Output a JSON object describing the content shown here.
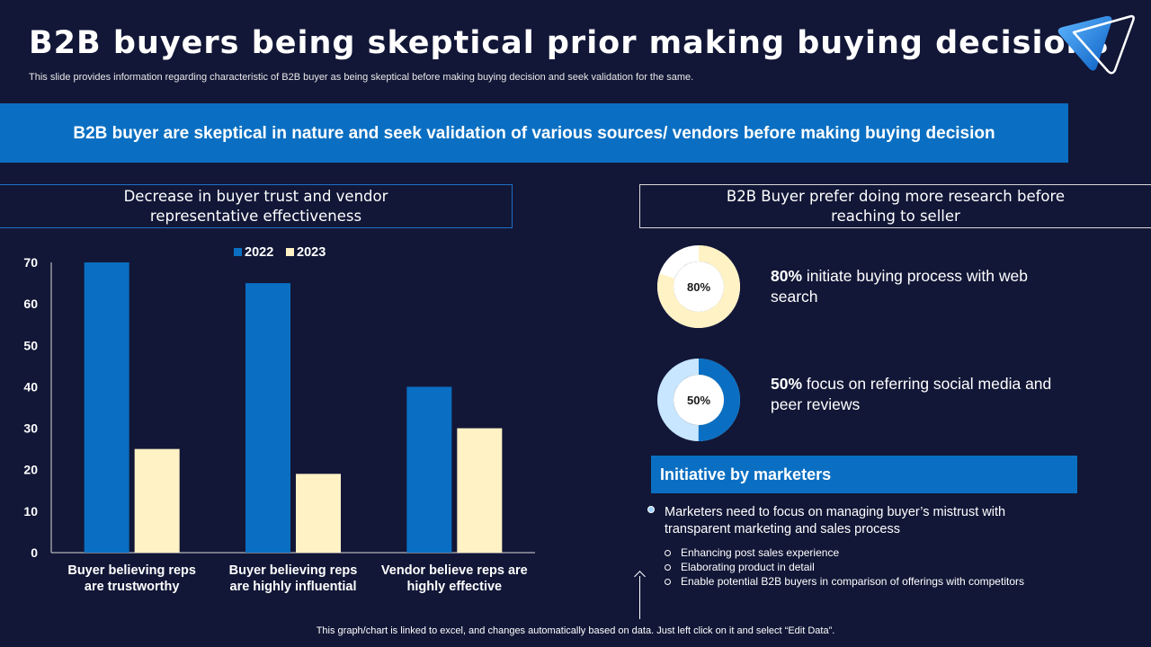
{
  "header": {
    "title": "B2B buyers being skeptical prior making buying decisions",
    "subtitle": "This slide provides information regarding characteristic of B2B buyer as being skeptical before making buying decision and seek validation for the same."
  },
  "banner": {
    "text": "B2B buyer are skeptical in nature and seek validation of various sources/ vendors before making buying decision"
  },
  "left_panel": {
    "heading_line1": "Decrease in buyer trust and vendor",
    "heading_line2": "representative effectiveness"
  },
  "right_panel": {
    "heading_line1": "B2B Buyer prefer doing more research before",
    "heading_line2": "reaching to seller",
    "stats": [
      {
        "percent_label": "80%",
        "value": 80,
        "bold": "80%",
        "text": " initiate buying process with web search"
      },
      {
        "percent_label": "50%",
        "value": 50,
        "bold": "50%",
        "text": " focus on referring social media and peer reviews"
      }
    ]
  },
  "initiative": {
    "title": "Initiative by marketers",
    "main_bullet": "Marketers need to focus on managing buyer’s mistrust with transparent marketing and sales process",
    "sub_bullets": [
      "Enhancing post sales experience",
      "Elaborating product in detail",
      "Enable potential B2B buyers in comparison of offerings with competitors"
    ]
  },
  "footnote": "This graph/chart is linked to excel, and changes automatically based on data. Just left click on it and select “Edit Data”.",
  "colors": {
    "background": "#121737",
    "accent_blue": "#0a6fc2",
    "cream": "#fff2c4",
    "light_blue": "#c8e6ff"
  },
  "chart_data": {
    "type": "bar",
    "categories": [
      [
        "Buyer believing reps",
        "are trustworthy"
      ],
      [
        "Buyer believing reps",
        "are highly influential"
      ],
      [
        "Vendor believe reps are",
        "highly effective"
      ]
    ],
    "series": [
      {
        "name": "2022",
        "values": [
          70,
          65,
          40
        ],
        "color": "#0a6fc2"
      },
      {
        "name": "2023",
        "values": [
          25,
          19,
          30
        ],
        "color": "#fff2c4"
      }
    ],
    "yticks": [
      0,
      10,
      20,
      30,
      40,
      50,
      60,
      70
    ],
    "ylim": [
      0,
      70
    ],
    "legend_position": "top",
    "grid": false
  }
}
